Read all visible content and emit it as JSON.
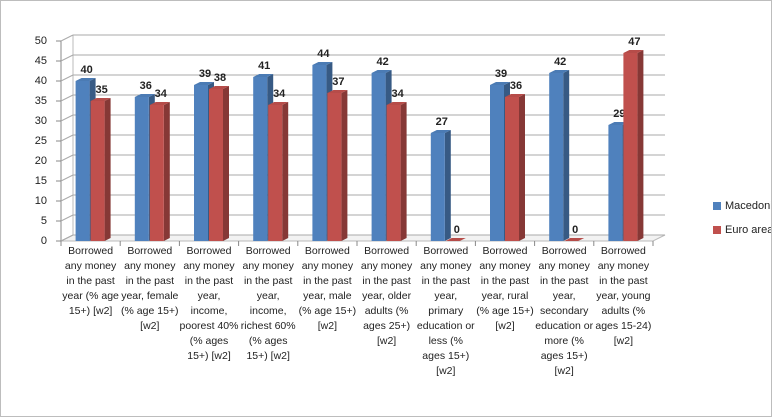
{
  "chart_data": {
    "type": "bar",
    "categories": [
      "Borrowed any money in the past year (% age 15+) [w2]",
      "Borrowed any money in the past year, female (% age 15+) [w2]",
      "Borrowed any money in the past year, income, poorest 40% (% ages 15+) [w2]",
      "Borrowed any money in the past year, income, richest 60% (% ages 15+) [w2]",
      "Borrowed any money in the past year, male (% age 15+) [w2]",
      "Borrowed any money in the past year, older adults (% ages 25+) [w2]",
      "Borrowed any money in the past year, primary education or less (% ages 15+) [w2]",
      "Borrowed any money in the past year, rural (% age 15+) [w2]",
      "Borrowed any money in the past year, secondary education or more (% ages 15+) [w2]",
      "Borrowed any money in the past year, young adults (% ages 15-24) [w2]"
    ],
    "series": [
      {
        "name": "Macedonia",
        "color": "#4f81bd",
        "values": [
          40,
          36,
          39,
          41,
          44,
          42,
          27,
          39,
          42,
          29
        ]
      },
      {
        "name": "Euro area",
        "color": "#c0504d",
        "values": [
          35,
          34,
          38,
          34,
          37,
          34,
          0,
          36,
          0,
          47
        ]
      }
    ],
    "ylim": [
      0,
      50
    ],
    "yticks": [
      0,
      5,
      10,
      15,
      20,
      25,
      30,
      35,
      40,
      45,
      50
    ],
    "grid": true,
    "legend": "right"
  }
}
